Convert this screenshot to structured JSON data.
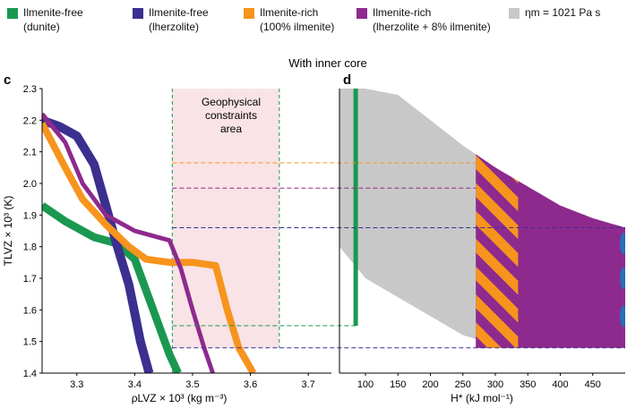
{
  "legend": [
    {
      "line1": "Ilmenite-free",
      "line2": "(dunite)",
      "color": "#1a9850"
    },
    {
      "line1": "Ilmenite-free",
      "line2": "(lherzolite)",
      "color": "#3b2f8f"
    },
    {
      "line1": "Ilmenite-rich",
      "line2": "(100% ilmenite)",
      "color": "#f7941d"
    },
    {
      "line1": "Ilmenite-rich",
      "line2": "(lherzolite + 8% ilmenite)",
      "color": "#8e2a8e"
    },
    {
      "line1": "ηm = 1021 Pa s",
      "line2": "",
      "color": "#c8c8c8"
    }
  ],
  "super_title": "With inner core",
  "chart_data": [
    {
      "panel_label": "c",
      "type": "line",
      "xlabel": "ρLVZ × 10³ (kg m⁻³)",
      "ylabel": "TLVZ × 10³ (K)",
      "xlim": [
        3.24,
        3.74
      ],
      "ylim": [
        1.4,
        2.3
      ],
      "xticks": [
        3.3,
        3.4,
        3.5,
        3.6,
        3.7
      ],
      "yticks": [
        1.4,
        1.5,
        1.6,
        1.7,
        1.8,
        1.9,
        2.0,
        2.1,
        2.2,
        2.3
      ],
      "xtick_labels": [
        "3.3",
        "3.4",
        "3.5",
        "3.6",
        "3.7"
      ],
      "ytick_labels": [
        "1.4",
        "1.5",
        "1.6",
        "1.7",
        "1.8",
        "1.9",
        "2.0",
        "2.1",
        "2.2",
        "2.3"
      ],
      "constraint_box": {
        "label_lines": [
          "Geophysical",
          "constraints",
          "area"
        ],
        "x": [
          3.465,
          3.65
        ],
        "y": [
          1.48,
          2.3
        ],
        "color": "#f9e3e6"
      },
      "series": [
        {
          "key": "dunite",
          "color": "#1a9850",
          "width": 0.025,
          "x": [
            3.24,
            3.28,
            3.33,
            3.37,
            3.4,
            3.42,
            3.44,
            3.46,
            3.475
          ],
          "y": [
            1.93,
            1.88,
            1.83,
            1.81,
            1.76,
            1.66,
            1.56,
            1.46,
            1.4
          ]
        },
        {
          "key": "lherzolite",
          "color": "#3b2f8f",
          "width": 0.028,
          "x": [
            3.24,
            3.27,
            3.3,
            3.33,
            3.35,
            3.37,
            3.39,
            3.4,
            3.41,
            3.425
          ],
          "y": [
            2.2,
            2.18,
            2.15,
            2.06,
            1.93,
            1.8,
            1.68,
            1.59,
            1.5,
            1.4
          ]
        },
        {
          "key": "ilm100",
          "color": "#f7941d",
          "width": 0.022,
          "x": [
            3.24,
            3.28,
            3.31,
            3.35,
            3.39,
            3.42,
            3.46,
            3.5,
            3.54,
            3.56,
            3.58,
            3.605
          ],
          "y": [
            2.19,
            2.05,
            1.95,
            1.87,
            1.8,
            1.76,
            1.75,
            1.75,
            1.74,
            1.6,
            1.48,
            1.4
          ]
        },
        {
          "key": "ilm8",
          "color": "#8e2a8e",
          "width": 0.014,
          "x": [
            3.24,
            3.28,
            3.31,
            3.35,
            3.4,
            3.44,
            3.46,
            3.48,
            3.5,
            3.52,
            3.535
          ],
          "y": [
            2.22,
            2.13,
            2.0,
            1.9,
            1.85,
            1.83,
            1.82,
            1.73,
            1.6,
            1.48,
            1.4
          ]
        }
      ]
    },
    {
      "panel_label": "d",
      "type": "area",
      "xlabel": "H* (kJ mol⁻¹)",
      "ylabel": "",
      "xlim": [
        60,
        500
      ],
      "ylim": [
        1.4,
        2.3
      ],
      "xticks": [
        100,
        150,
        200,
        250,
        300,
        350,
        400,
        450
      ],
      "xtick_labels": [
        "100",
        "150",
        "200",
        "250",
        "300",
        "350",
        "400",
        "450"
      ],
      "viscosity_band": {
        "x": [
          60,
          100,
          150,
          200,
          250,
          300,
          350,
          400,
          450,
          500
        ],
        "upper": [
          2.3,
          2.3,
          2.28,
          2.2,
          2.12,
          2.05,
          1.99,
          1.93,
          1.89,
          1.86
        ],
        "lower": [
          1.8,
          1.7,
          1.64,
          1.58,
          1.52,
          1.49,
          1.48,
          1.48,
          1.48,
          1.48
        ],
        "color": "#c8c8c8"
      },
      "dunite_line": {
        "x": 85,
        "y": [
          1.55,
          2.3
        ],
        "color": "#1a9850"
      },
      "ilmenite_rich_region": {
        "x_start": 270,
        "y_bottom": 1.48,
        "hatch_x_end": 335
      }
    }
  ],
  "guide_lines": [
    {
      "y": 2.065,
      "color": "#f7941d"
    },
    {
      "y": 1.985,
      "color": "#8e2a8e"
    },
    {
      "y": 1.86,
      "color": "#3b2f8f"
    },
    {
      "y": 1.55,
      "color": "#1a9850"
    },
    {
      "y": 1.48,
      "color": "#3b2f8f"
    }
  ]
}
